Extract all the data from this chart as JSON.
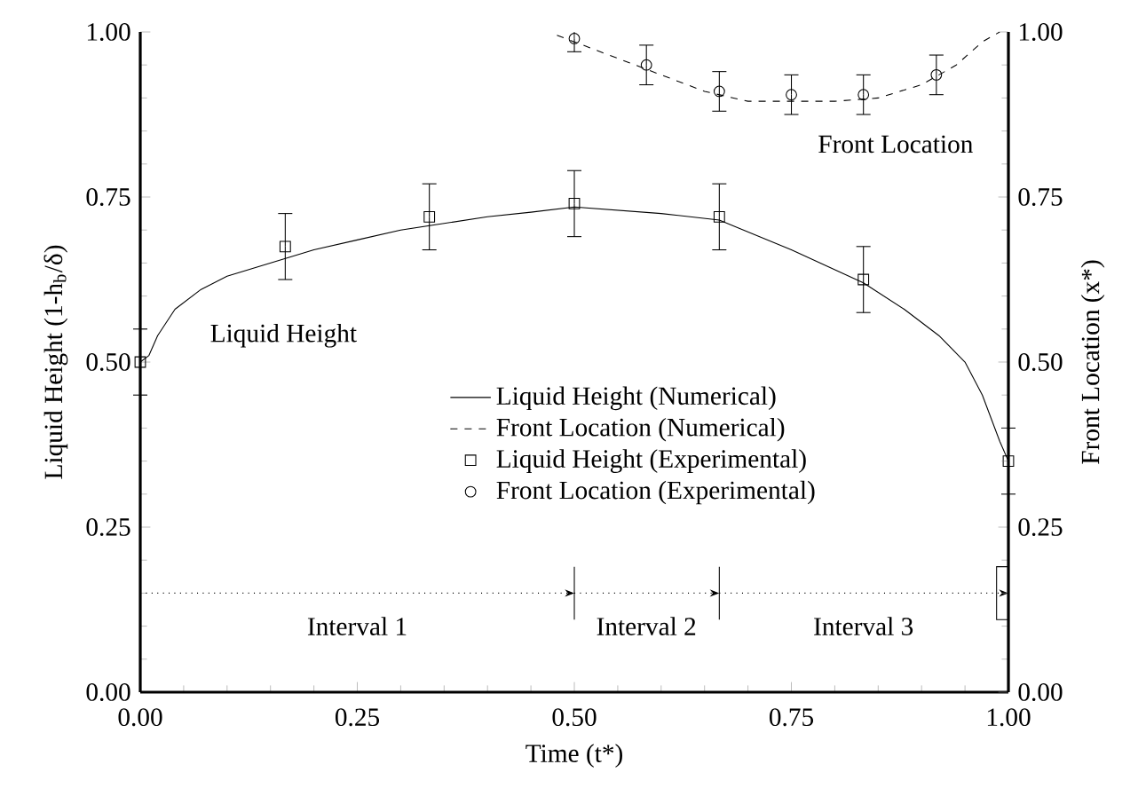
{
  "chart_data": {
    "type": "line",
    "xlabel": "Time (t*)",
    "ylabel": "Liquid Height (1-h$_{b}$/δ)",
    "y2label": "Front Location (x*)",
    "xlim": [
      0,
      1
    ],
    "ylim": [
      0,
      1
    ],
    "y2lim": [
      0,
      1
    ],
    "xticks": [
      {
        "value": 0,
        "label": "0.00"
      },
      {
        "value": 0.25,
        "label": "0.25"
      },
      {
        "value": 0.5,
        "label": "0.50"
      },
      {
        "value": 0.75,
        "label": "0.75"
      },
      {
        "value": 1,
        "label": "1.00"
      }
    ],
    "yticks": [
      {
        "value": 0,
        "label": "0.00"
      },
      {
        "value": 0.25,
        "label": "0.25"
      },
      {
        "value": 0.5,
        "label": "0.50"
      },
      {
        "value": 0.75,
        "label": "0.75"
      },
      {
        "value": 1,
        "label": "1.00"
      }
    ],
    "y2ticks": [
      {
        "value": 0,
        "label": "0.00"
      },
      {
        "value": 0.25,
        "label": "0.25"
      },
      {
        "value": 0.5,
        "label": "0.50"
      },
      {
        "value": 0.75,
        "label": "0.75"
      },
      {
        "value": 1,
        "label": "1.00"
      }
    ],
    "legend": "center",
    "series": [
      {
        "name": "Liquid Height (Numerical)",
        "color": "#000000",
        "line_style": "solid",
        "marker": "none",
        "x": [
          0,
          0.01,
          0.02,
          0.04,
          0.07,
          0.1,
          0.15,
          0.2,
          0.25,
          0.3,
          0.35,
          0.4,
          0.45,
          0.5,
          0.55,
          0.6,
          0.667,
          0.75,
          0.833,
          0.88,
          0.92,
          0.95,
          0.97,
          0.99,
          1.0
        ],
        "values": [
          0.5,
          0.51,
          0.54,
          0.58,
          0.61,
          0.63,
          0.65,
          0.67,
          0.685,
          0.7,
          0.71,
          0.72,
          0.727,
          0.735,
          0.73,
          0.725,
          0.715,
          0.67,
          0.62,
          0.58,
          0.54,
          0.5,
          0.45,
          0.38,
          0.35
        ]
      },
      {
        "name": "Front Location (Numerical)",
        "axis": "y2",
        "color": "#000000",
        "line_style": "dashed",
        "marker": "none",
        "x": [
          0.48,
          0.5,
          0.55,
          0.6,
          0.65,
          0.7,
          0.75,
          0.8,
          0.85,
          0.9,
          0.94,
          0.97,
          0.99
        ],
        "values": [
          0.995,
          0.985,
          0.96,
          0.935,
          0.91,
          0.895,
          0.895,
          0.895,
          0.9,
          0.92,
          0.95,
          0.985,
          1.0
        ]
      },
      {
        "name": "Liquid Height (Experimental)",
        "type": "scatter",
        "color": "#000000",
        "marker": "square",
        "x": [
          0,
          0.167,
          0.333,
          0.5,
          0.667,
          0.833,
          1.0
        ],
        "values": [
          0.5,
          0.675,
          0.72,
          0.74,
          0.72,
          0.625,
          0.35
        ],
        "errors": [
          0.05,
          0.05,
          0.05,
          0.05,
          0.05,
          0.05,
          0.05
        ]
      },
      {
        "name": "Front Location (Experimental)",
        "type": "scatter",
        "axis": "y2",
        "color": "#000000",
        "marker": "circle",
        "x": [
          0.5,
          0.583,
          0.667,
          0.75,
          0.833,
          0.917
        ],
        "values": [
          0.99,
          0.95,
          0.91,
          0.905,
          0.905,
          0.935
        ],
        "errors": [
          0.02,
          0.03,
          0.03,
          0.03,
          0.03,
          0.03
        ]
      }
    ],
    "ref_lines": [
      {
        "axis": "x",
        "value": 0.5,
        "color": "#000000"
      },
      {
        "axis": "x",
        "value": 0.667,
        "color": "#000000"
      }
    ],
    "annotations": [
      "Liquid Height",
      "Front Location",
      "Interval 1",
      "Interval 2",
      "Interval 3"
    ]
  }
}
